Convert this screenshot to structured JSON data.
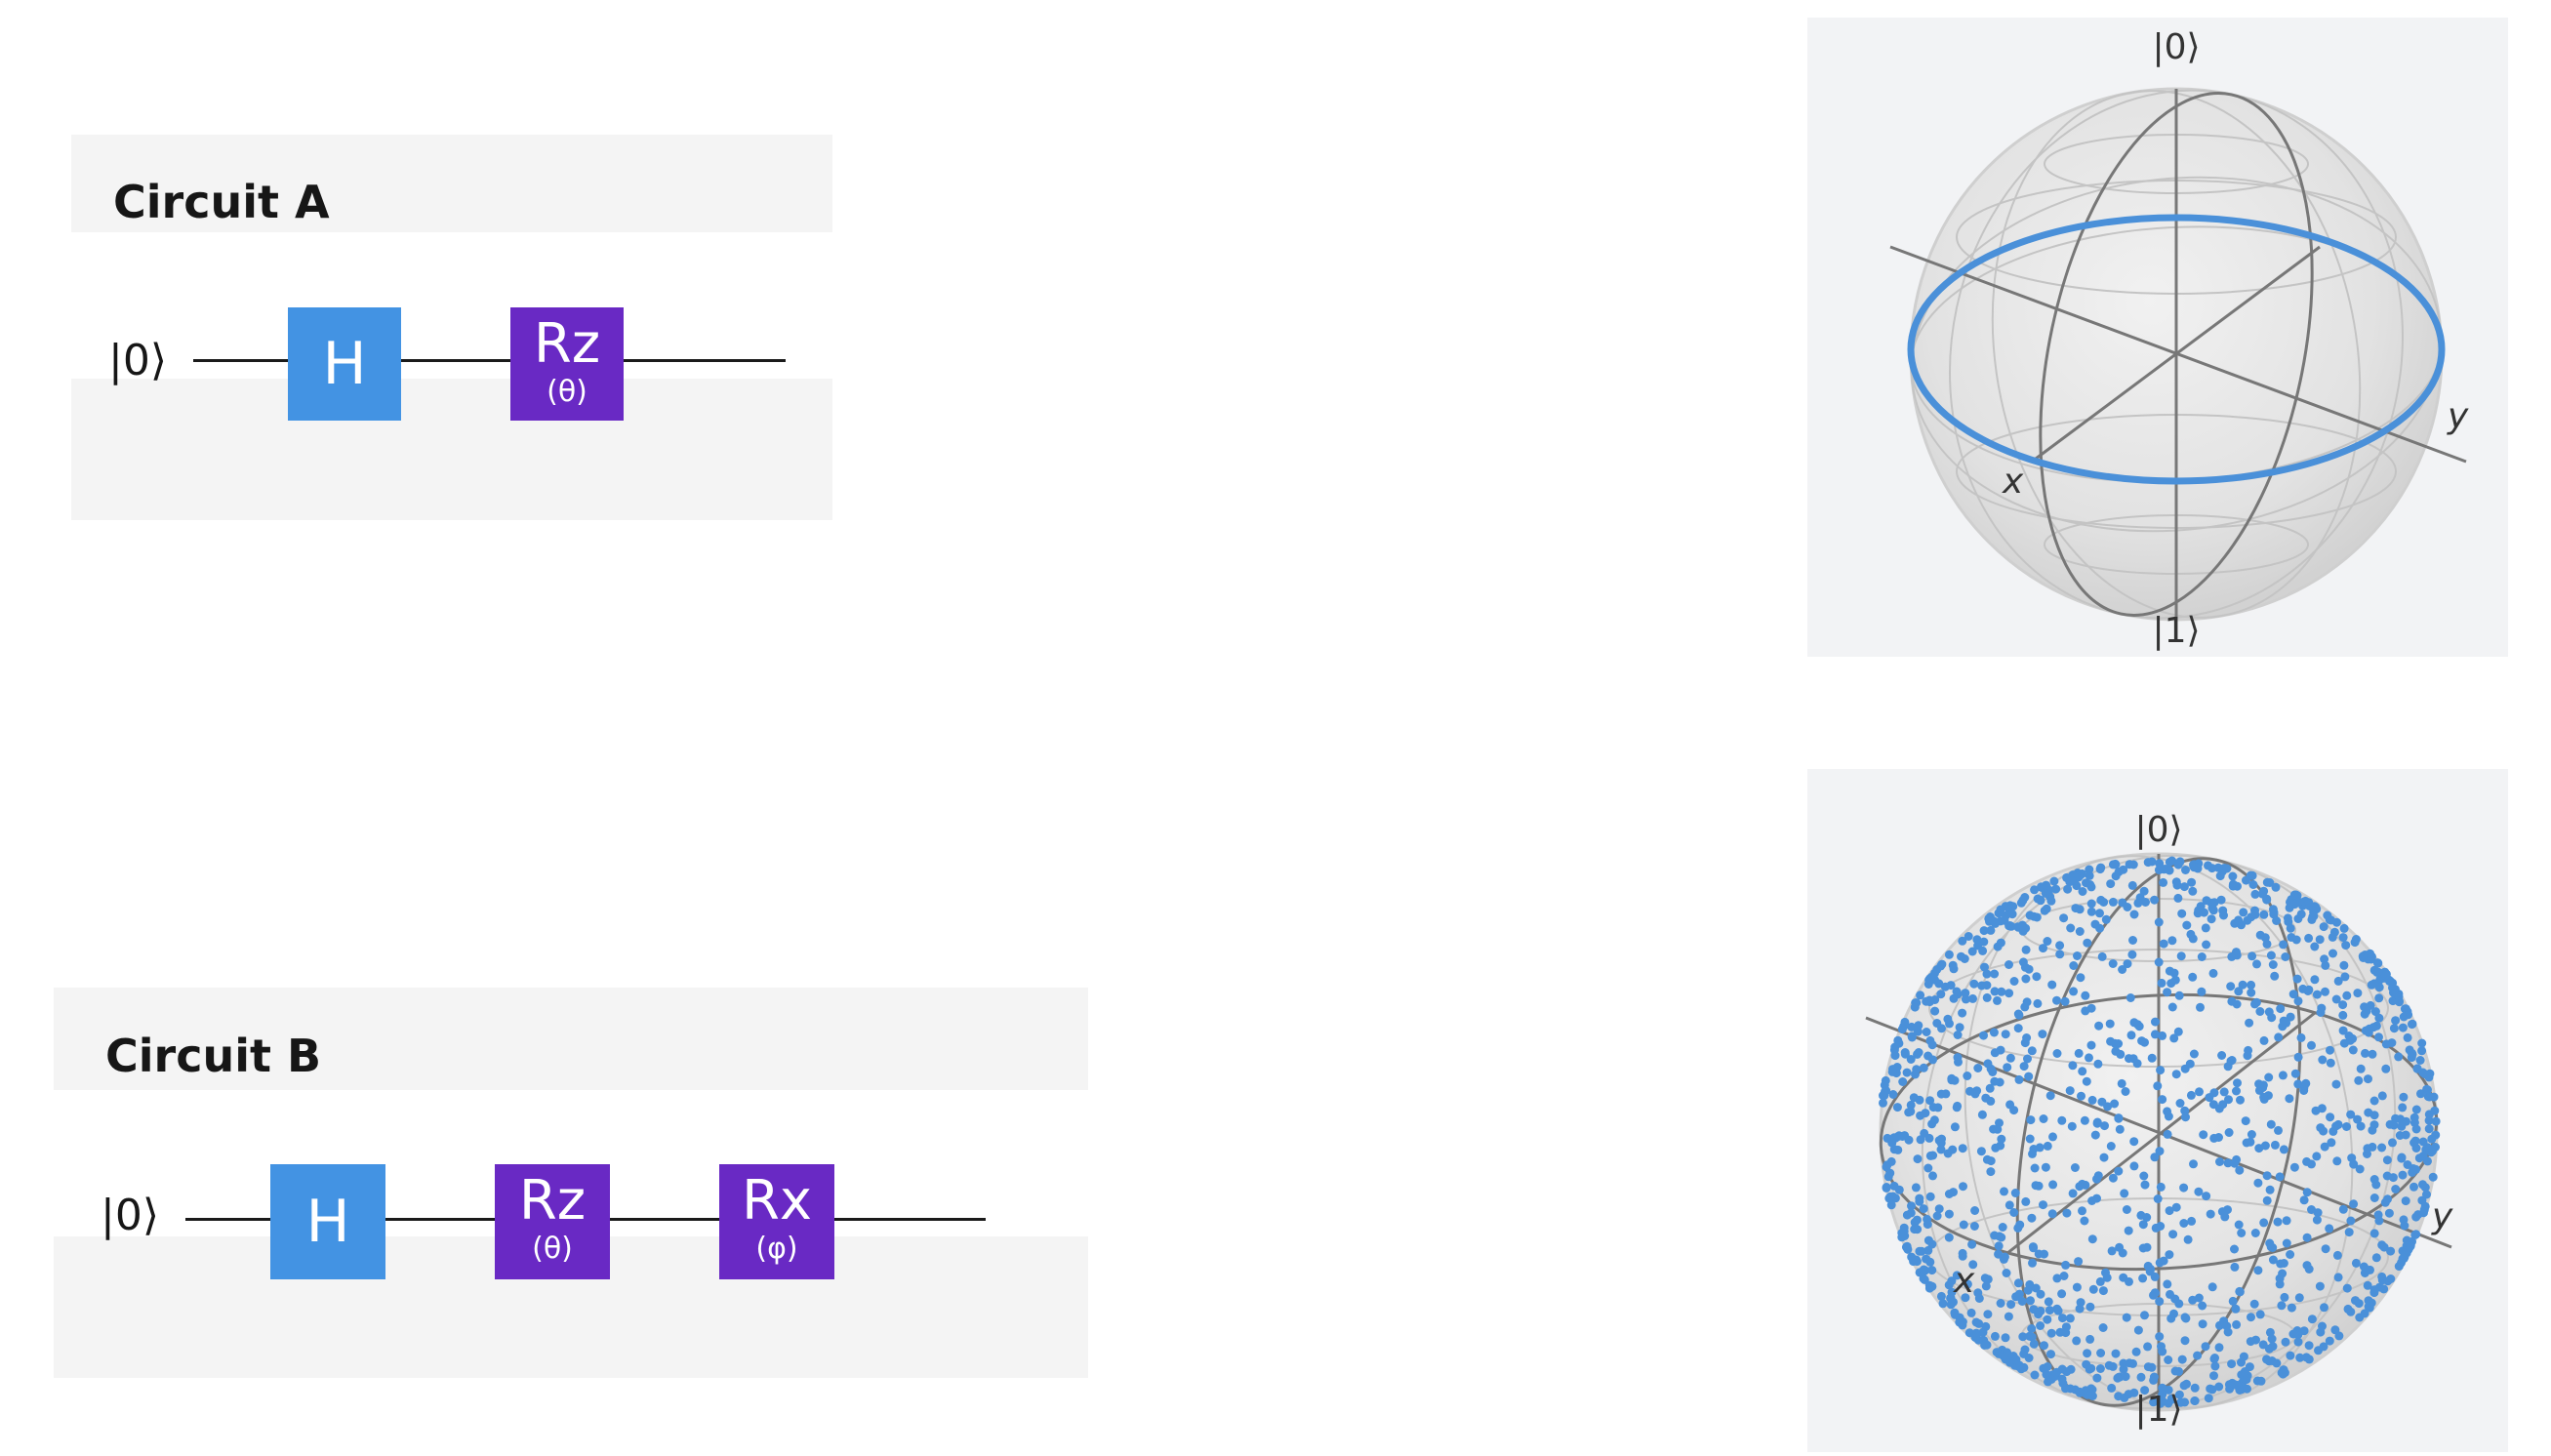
{
  "circuits": [
    {
      "title": "Circuit A",
      "input_state": "|0⟩",
      "gates": [
        {
          "type": "single",
          "label": "H",
          "param": ""
        },
        {
          "type": "rotation",
          "label": "Rz",
          "param": "(θ)"
        }
      ]
    },
    {
      "title": "Circuit B",
      "input_state": "|0⟩",
      "gates": [
        {
          "type": "single",
          "label": "H",
          "param": ""
        },
        {
          "type": "rotation",
          "label": "Rz",
          "param": "(θ)"
        },
        {
          "type": "rotation",
          "label": "Rx",
          "param": "(φ)"
        }
      ]
    }
  ],
  "bloch_spheres": [
    {
      "top_label": "|0⟩",
      "bottom_label": "|1⟩",
      "x_label": "x",
      "y_label": "y",
      "states": "equator"
    },
    {
      "top_label": "|0⟩",
      "bottom_label": "|1⟩",
      "x_label": "x",
      "y_label": "y",
      "states": "uniform"
    }
  ],
  "colors": {
    "h_gate": "#4393e3",
    "rotation_gate": "#6929c4",
    "state_points": "#4a90d9",
    "panel_bg": "#f2f3f5"
  }
}
